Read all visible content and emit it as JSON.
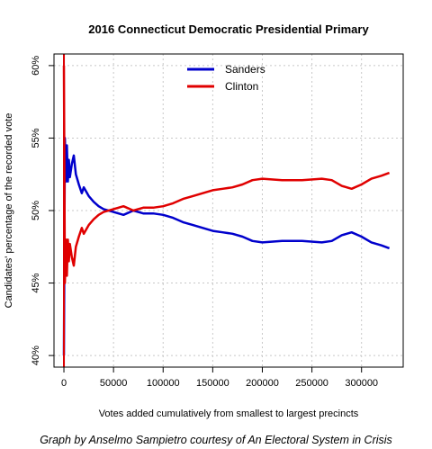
{
  "chart_data": {
    "type": "line",
    "title": "2016 Connecticut Democratic Presidential Primary",
    "xlabel": "Votes added cumulatively from smallest to largest precincts",
    "ylabel": "Candidates' percentage of the recorded vote",
    "caption": "Graph by Anselmo Sampietro courtesy of An Electoral System in Crisis",
    "xlim": [
      -10000,
      342000
    ],
    "ylim": [
      39.2,
      60.8
    ],
    "x_ticks": [
      0,
      50000,
      100000,
      150000,
      200000,
      250000,
      300000
    ],
    "x_tick_labels": [
      "0",
      "50000",
      "100000",
      "150000",
      "200000",
      "250000",
      "300000"
    ],
    "y_ticks": [
      40,
      45,
      50,
      55,
      60
    ],
    "y_tick_labels": [
      "40%",
      "45%",
      "50%",
      "55%",
      "60%"
    ],
    "grid": true,
    "legend": "top-center",
    "series": [
      {
        "name": "Sanders",
        "color": "#0000cc",
        "x": [
          0,
          1000,
          2000,
          3000,
          4000,
          5000,
          6000,
          8000,
          10000,
          12000,
          15000,
          18000,
          20000,
          25000,
          30000,
          35000,
          40000,
          50000,
          60000,
          70000,
          80000,
          90000,
          100000,
          110000,
          120000,
          130000,
          140000,
          150000,
          160000,
          170000,
          180000,
          190000,
          200000,
          220000,
          240000,
          260000,
          270000,
          280000,
          290000,
          300000,
          310000,
          320000,
          328000
        ],
        "values": [
          40.0,
          55.0,
          52.0,
          54.5,
          52.0,
          53.5,
          52.3,
          53.2,
          53.8,
          52.5,
          51.8,
          51.2,
          51.6,
          51.0,
          50.6,
          50.3,
          50.1,
          49.9,
          49.7,
          50.0,
          49.8,
          49.8,
          49.7,
          49.5,
          49.2,
          49.0,
          48.8,
          48.6,
          48.5,
          48.4,
          48.2,
          47.9,
          47.8,
          47.9,
          47.9,
          47.8,
          47.9,
          48.3,
          48.5,
          48.2,
          47.8,
          47.6,
          47.4
        ]
      },
      {
        "name": "Clinton",
        "color": "#e00000",
        "x": [
          0,
          1000,
          2000,
          3000,
          4000,
          5000,
          6000,
          8000,
          10000,
          12000,
          15000,
          18000,
          20000,
          25000,
          30000,
          35000,
          40000,
          50000,
          60000,
          70000,
          80000,
          90000,
          100000,
          110000,
          120000,
          130000,
          140000,
          150000,
          160000,
          170000,
          180000,
          190000,
          200000,
          220000,
          240000,
          260000,
          270000,
          280000,
          290000,
          300000,
          310000,
          320000,
          328000
        ],
        "values": [
          60.0,
          45.0,
          48.0,
          45.5,
          48.0,
          46.5,
          47.7,
          46.8,
          46.2,
          47.5,
          48.2,
          48.8,
          48.4,
          49.0,
          49.4,
          49.7,
          49.9,
          50.1,
          50.3,
          50.0,
          50.2,
          50.2,
          50.3,
          50.5,
          50.8,
          51.0,
          51.2,
          51.4,
          51.5,
          51.6,
          51.8,
          52.1,
          52.2,
          52.1,
          52.1,
          52.2,
          52.1,
          51.7,
          51.5,
          51.8,
          52.2,
          52.4,
          52.6
        ]
      }
    ]
  }
}
